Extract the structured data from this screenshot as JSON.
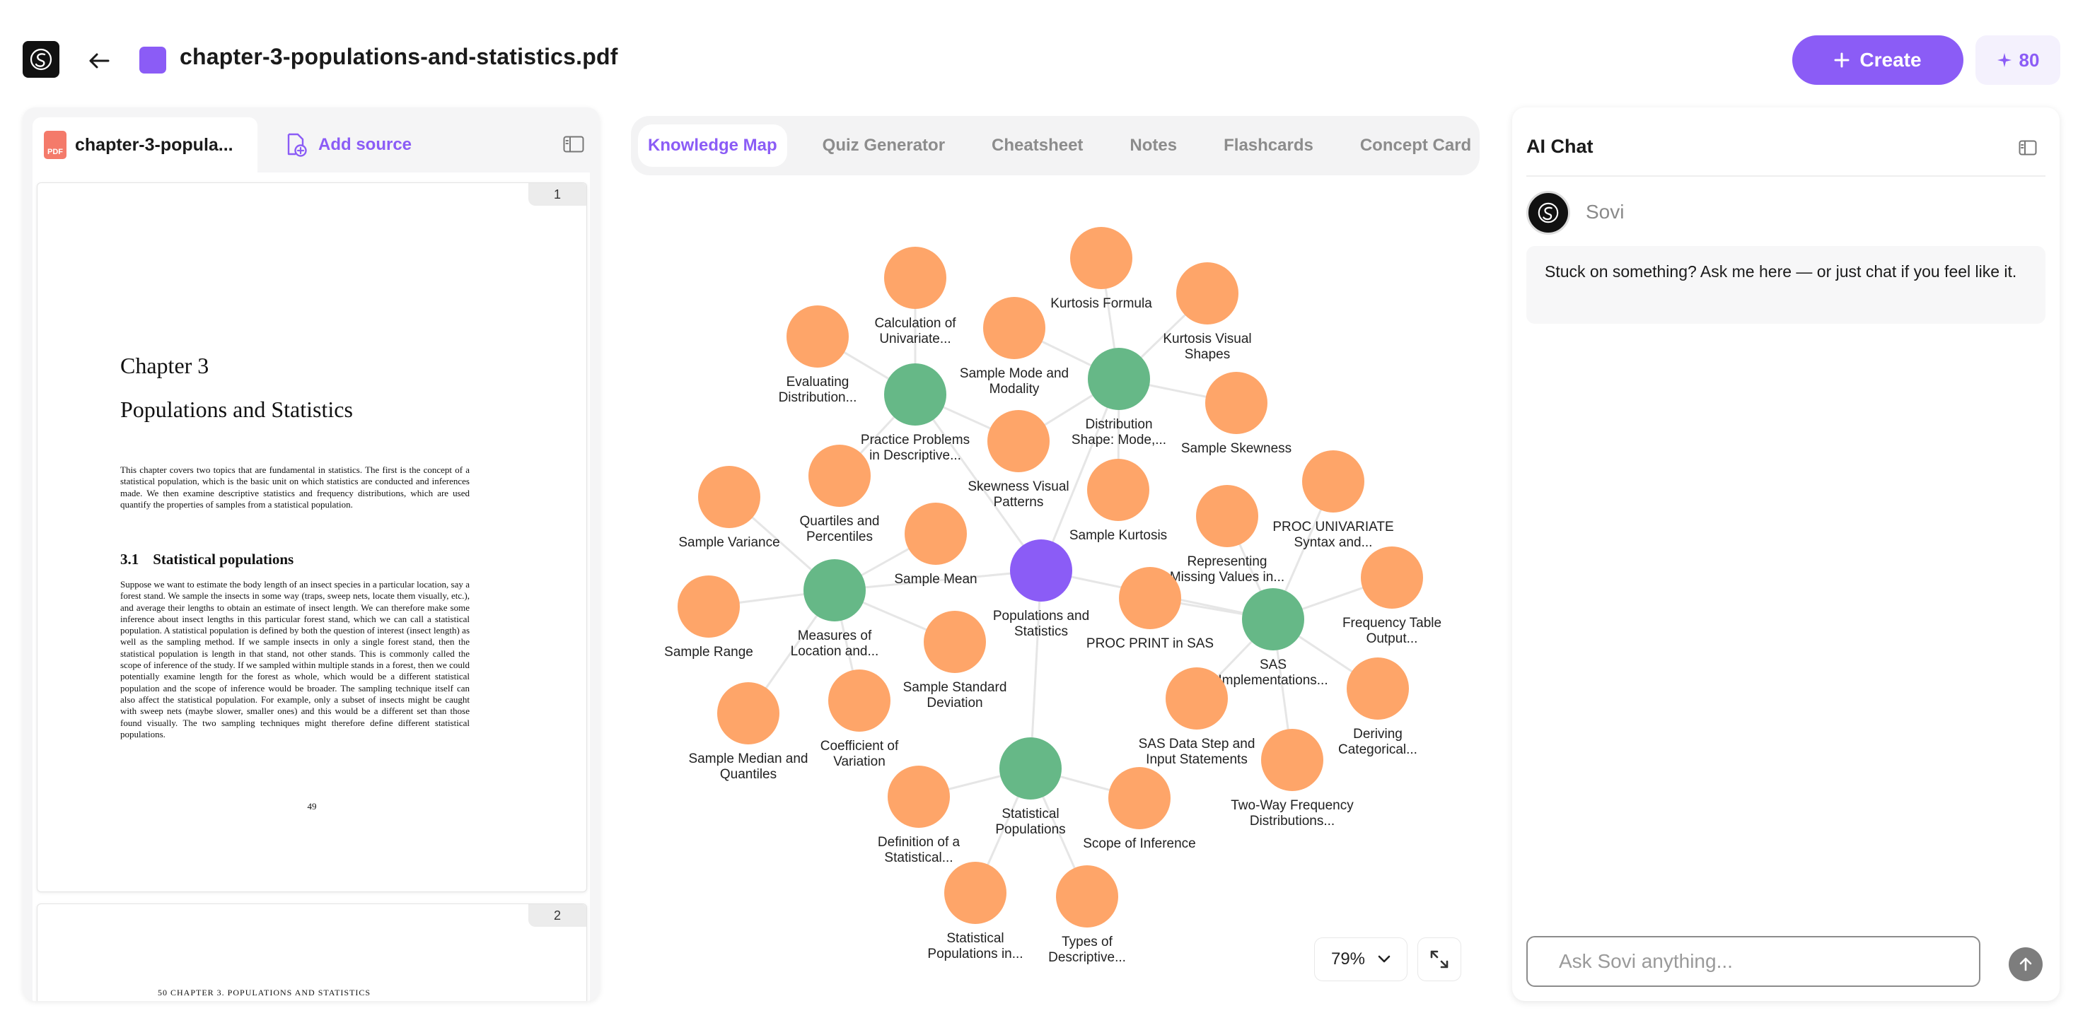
{
  "header": {
    "file_title": "chapter-3-populations-and-statistics.pdf",
    "create_label": "Create",
    "credits": "80"
  },
  "source_panel": {
    "active_tab": "chapter-3-popula...",
    "add_source_label": "Add source",
    "pdf_icon_text": "PDF",
    "pages": [
      {
        "number": "1",
        "chapter_label": "Chapter 3",
        "chapter_title": "Populations and Statistics",
        "intro": "This chapter covers two topics that are fundamental in statistics. The first is the concept of a statistical population, which is the basic unit on which statistics are conducted and inferences made. We then examine descriptive statistics and frequency distributions, which are used quantify the properties of samples from a statistical population.",
        "section_number": "3.1",
        "section_title": "Statistical populations",
        "body": "Suppose we want to estimate the body length of an insect species in a particular location, say a forest stand. We sample the insects in some way (traps, sweep nets, locate them visually, etc.), and average their lengths to obtain an estimate of insect length. We can therefore make some inference about insect lengths in this particular forest stand, which we can call a statistical population. A statistical population is defined by both the question of interest (insect length) as well as the sampling method. If we sample insects in only a single forest stand, then the statistical population is length in that stand, not other stands. This is commonly called the scope of inference of the study. If we sampled within multiple stands in a forest, then we could potentially examine length for the forest as whole, which would be a different statistical population and the scope of inference would be broader. The sampling technique itself can also affect the statistical population. For example, only a subset of insects might be caught with sweep nets (maybe slower, smaller ones) and this would be a different set than those found visually. The two sampling techniques might therefore define different statistical populations.",
        "page_number": "49"
      },
      {
        "number": "2",
        "running_header": "50          CHAPTER 3.  POPULATIONS AND STATISTICS"
      }
    ]
  },
  "tools": {
    "tabs": [
      {
        "label": "Knowledge Map",
        "active": true
      },
      {
        "label": "Quiz Generator",
        "active": false
      },
      {
        "label": "Cheatsheet",
        "active": false
      },
      {
        "label": "Notes",
        "active": false
      },
      {
        "label": "Flashcards",
        "active": false
      },
      {
        "label": "Concept Card",
        "active": false
      }
    ],
    "zoom_level": "79%"
  },
  "knowledge_map": {
    "colors": {
      "root": "#8b5cf6",
      "hub": "#66b887",
      "leaf": "#fea569",
      "edge": "#e6e6e6"
    },
    "nodes": [
      {
        "id": "root",
        "type": "root",
        "lines": [
          "Populations and",
          "Statistics"
        ]
      },
      {
        "id": "h1",
        "type": "hub",
        "lines": [
          "Practice Problems",
          "in Descriptive..."
        ]
      },
      {
        "id": "h2",
        "type": "hub",
        "lines": [
          "Distribution",
          "Shape: Mode,..."
        ]
      },
      {
        "id": "h3",
        "type": "hub",
        "lines": [
          "Measures of",
          "Location and..."
        ]
      },
      {
        "id": "h4",
        "type": "hub",
        "lines": [
          "SAS",
          "Implementations..."
        ]
      },
      {
        "id": "h5",
        "type": "hub",
        "lines": [
          "Statistical",
          "Populations"
        ]
      },
      {
        "id": "l1",
        "type": "leaf",
        "lines": [
          "Calculation of",
          "Univariate..."
        ]
      },
      {
        "id": "l2",
        "type": "leaf",
        "lines": [
          "Evaluating",
          "Distribution..."
        ]
      },
      {
        "id": "l3",
        "type": "leaf",
        "lines": [
          "Quartiles and",
          "Percentiles"
        ]
      },
      {
        "id": "l4",
        "type": "leaf",
        "lines": [
          "Kurtosis Formula"
        ]
      },
      {
        "id": "l5",
        "type": "leaf",
        "lines": [
          "Kurtosis Visual",
          "Shapes"
        ]
      },
      {
        "id": "l6",
        "type": "leaf",
        "lines": [
          "Sample Mode and",
          "Modality"
        ]
      },
      {
        "id": "l7",
        "type": "leaf",
        "lines": [
          "Sample Skewness"
        ]
      },
      {
        "id": "l8",
        "type": "leaf",
        "lines": [
          "Skewness Visual",
          "Patterns"
        ]
      },
      {
        "id": "l9",
        "type": "leaf",
        "lines": [
          "Sample Kurtosis"
        ]
      },
      {
        "id": "l10",
        "type": "leaf",
        "lines": [
          "Sample Variance"
        ]
      },
      {
        "id": "l11",
        "type": "leaf",
        "lines": [
          "Sample Mean"
        ]
      },
      {
        "id": "l12",
        "type": "leaf",
        "lines": [
          "Sample Range"
        ]
      },
      {
        "id": "l13",
        "type": "leaf",
        "lines": [
          "Sample Standard",
          "Deviation"
        ]
      },
      {
        "id": "l14",
        "type": "leaf",
        "lines": [
          "Sample Median and",
          "Quantiles"
        ]
      },
      {
        "id": "l15",
        "type": "leaf",
        "lines": [
          "Coefficient of",
          "Variation"
        ]
      },
      {
        "id": "l16",
        "type": "leaf",
        "lines": [
          "PROC UNIVARIATE",
          "Syntax and..."
        ]
      },
      {
        "id": "l17",
        "type": "leaf",
        "lines": [
          "Representing",
          "Missing Values in..."
        ]
      },
      {
        "id": "l18",
        "type": "leaf",
        "lines": [
          "Frequency Table",
          "Output..."
        ]
      },
      {
        "id": "l19",
        "type": "leaf",
        "lines": [
          "PROC PRINT in SAS"
        ]
      },
      {
        "id": "l20",
        "type": "leaf",
        "lines": [
          "Deriving",
          "Categorical..."
        ]
      },
      {
        "id": "l21",
        "type": "leaf",
        "lines": [
          "SAS Data Step and",
          "Input Statements"
        ]
      },
      {
        "id": "l22",
        "type": "leaf",
        "lines": [
          "Two-Way Frequency",
          "Distributions..."
        ]
      },
      {
        "id": "l23",
        "type": "leaf",
        "lines": [
          "Definition of a",
          "Statistical..."
        ]
      },
      {
        "id": "l24",
        "type": "leaf",
        "lines": [
          "Scope of Inference"
        ]
      },
      {
        "id": "l25",
        "type": "leaf",
        "lines": [
          "Statistical",
          "Populations in..."
        ]
      },
      {
        "id": "l26",
        "type": "leaf",
        "lines": [
          "Types of",
          "Descriptive..."
        ]
      }
    ],
    "edges": [
      [
        "root",
        "h1"
      ],
      [
        "root",
        "h2"
      ],
      [
        "root",
        "h3"
      ],
      [
        "root",
        "h4"
      ],
      [
        "root",
        "h5"
      ],
      [
        "h1",
        "l1"
      ],
      [
        "h1",
        "l2"
      ],
      [
        "h1",
        "l3"
      ],
      [
        "h1",
        "l8"
      ],
      [
        "h2",
        "l4"
      ],
      [
        "h2",
        "l5"
      ],
      [
        "h2",
        "l6"
      ],
      [
        "h2",
        "l7"
      ],
      [
        "h2",
        "l8"
      ],
      [
        "h2",
        "l9"
      ],
      [
        "h3",
        "l10"
      ],
      [
        "h3",
        "l11"
      ],
      [
        "h3",
        "l12"
      ],
      [
        "h3",
        "l13"
      ],
      [
        "h3",
        "l14"
      ],
      [
        "h3",
        "l15"
      ],
      [
        "h4",
        "l16"
      ],
      [
        "h4",
        "l17"
      ],
      [
        "h4",
        "l18"
      ],
      [
        "h4",
        "l19"
      ],
      [
        "h4",
        "l20"
      ],
      [
        "h4",
        "l21"
      ],
      [
        "h4",
        "l22"
      ],
      [
        "h5",
        "l23"
      ],
      [
        "h5",
        "l24"
      ],
      [
        "h5",
        "l25"
      ],
      [
        "h5",
        "l26"
      ]
    ]
  },
  "chat": {
    "title": "AI Chat",
    "assistant_name": "Sovi",
    "greeting": "Stuck on something? Ask me here — or just chat if you feel like it.",
    "input_placeholder": "Ask Sovi anything..."
  }
}
